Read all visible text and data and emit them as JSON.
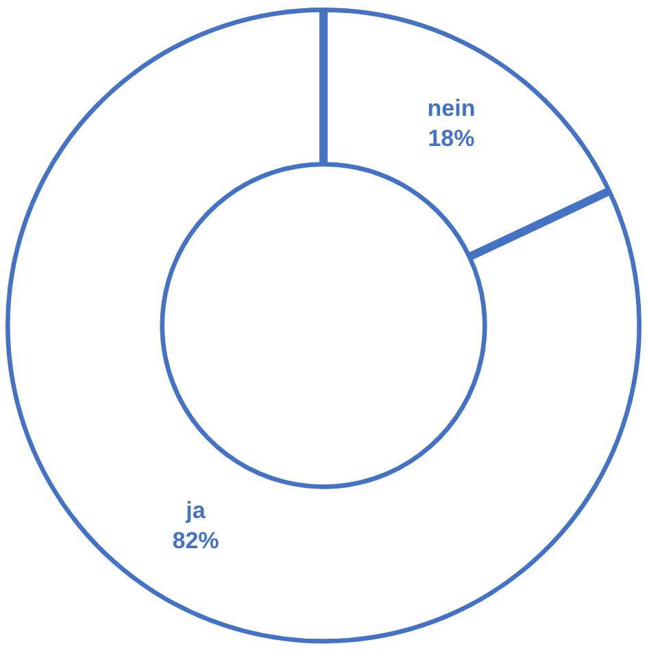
{
  "chart_data": {
    "type": "donut",
    "categories": [
      "nein",
      "ja"
    ],
    "values": [
      18,
      82
    ],
    "colors": [
      "#ffffff",
      "#ffffff"
    ],
    "value_labels": [
      "18%",
      "82%"
    ],
    "legend": false
  }
}
